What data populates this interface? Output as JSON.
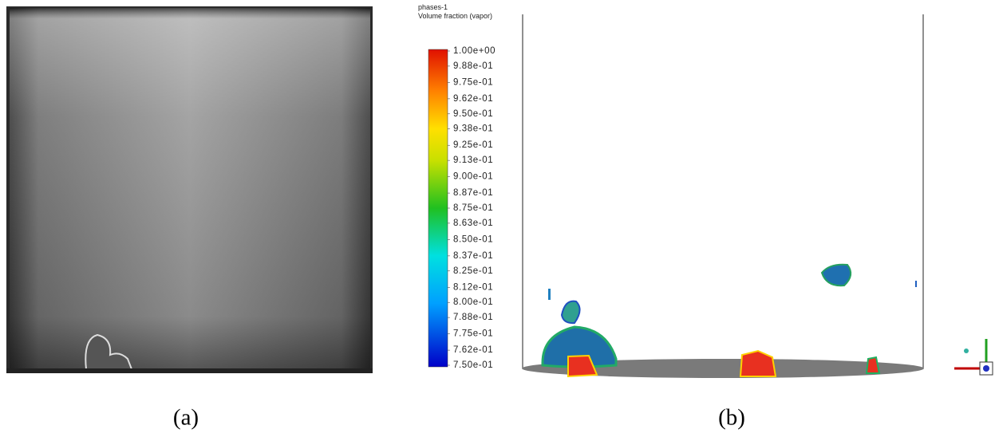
{
  "panels": [
    {
      "label": "(a)"
    },
    {
      "label": "(b)"
    }
  ],
  "colorbar": {
    "title": "phases-1",
    "subtitle": "Volume fraction (vapor)",
    "ticks": [
      {
        "value": 1.0,
        "label": "1.00e+00"
      },
      {
        "value": 0.988,
        "label": "9.88e-01"
      },
      {
        "value": 0.975,
        "label": "9.75e-01"
      },
      {
        "value": 0.962,
        "label": "9.62e-01"
      },
      {
        "value": 0.95,
        "label": "9.50e-01"
      },
      {
        "value": 0.938,
        "label": "9.38e-01"
      },
      {
        "value": 0.925,
        "label": "9.25e-01"
      },
      {
        "value": 0.913,
        "label": "9.13e-01"
      },
      {
        "value": 0.9,
        "label": "9.00e-01"
      },
      {
        "value": 0.887,
        "label": "8.87e-01"
      },
      {
        "value": 0.875,
        "label": "8.75e-01"
      },
      {
        "value": 0.863,
        "label": "8.63e-01"
      },
      {
        "value": 0.85,
        "label": "8.50e-01"
      },
      {
        "value": 0.837,
        "label": "8.37e-01"
      },
      {
        "value": 0.825,
        "label": "8.25e-01"
      },
      {
        "value": 0.812,
        "label": "8.12e-01"
      },
      {
        "value": 0.8,
        "label": "8.00e-01"
      },
      {
        "value": 0.788,
        "label": "7.88e-01"
      },
      {
        "value": 0.775,
        "label": "7.75e-01"
      },
      {
        "value": 0.762,
        "label": "7.62e-01"
      },
      {
        "value": 0.75,
        "label": "7.50e-01"
      }
    ]
  }
}
